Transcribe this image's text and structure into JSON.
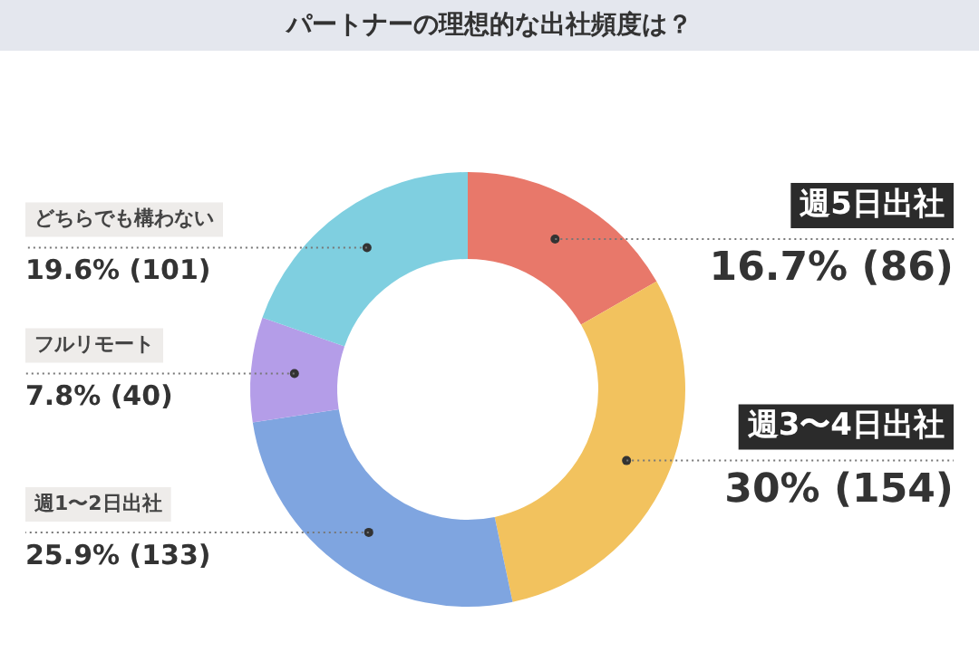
{
  "chart_data": {
    "type": "donut",
    "title": "パートナーの理想的な出社頻度は？",
    "categories": [
      "週5日出社",
      "週3〜4日出社",
      "週1〜2日出社",
      "フルリモート",
      "どちらでも構わない"
    ],
    "values": [
      86,
      154,
      133,
      40,
      101
    ],
    "value_labels": [
      "16.7% (86)",
      "30% (154)",
      "25.9% (133)",
      "7.8% (40)",
      "19.6% (101)"
    ],
    "colors": [
      "#e8786a",
      "#f2c25e",
      "#7fa5e0",
      "#b49de8",
      "#7fcfe0"
    ],
    "legend": false
  }
}
